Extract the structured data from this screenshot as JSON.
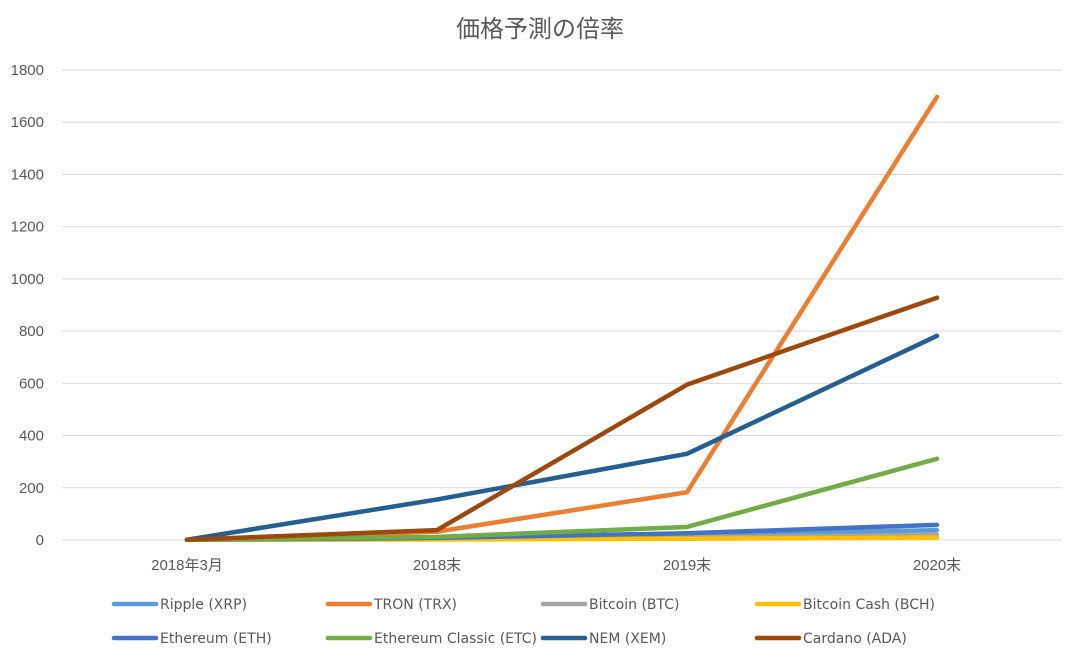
{
  "chart_data": {
    "type": "line",
    "title": "価格予測の倍率",
    "xlabel": "",
    "ylabel": "",
    "categories": [
      "2018年3月",
      "2018末",
      "2019末",
      "2020末"
    ],
    "ylim": [
      0,
      1800
    ],
    "yticks": [
      0,
      200,
      400,
      600,
      800,
      1000,
      1200,
      1400,
      1600,
      1800
    ],
    "grid": "horizontal",
    "legend_position": "bottom",
    "series": [
      {
        "name": "Ripple (XRP)",
        "color": "#5B9BD5",
        "values": [
          1,
          6,
          18,
          38
        ]
      },
      {
        "name": "TRON (TRX)",
        "color": "#ED7D31",
        "values": [
          1,
          32,
          183,
          1697
        ]
      },
      {
        "name": "Bitcoin (BTC)",
        "color": "#A5A5A5",
        "values": [
          1,
          3,
          10,
          20
        ]
      },
      {
        "name": "Bitcoin Cash (BCH)",
        "color": "#FFC000",
        "values": [
          1,
          2,
          5,
          9
        ]
      },
      {
        "name": "Ethereum (ETH)",
        "color": "#4472C4",
        "values": [
          1,
          8,
          26,
          58
        ]
      },
      {
        "name": "Ethereum Classic (ETC)",
        "color": "#70AD47",
        "values": [
          1,
          12,
          50,
          311
        ]
      },
      {
        "name": "NEM (XEM)",
        "color": "#255E91",
        "values": [
          1,
          155,
          330,
          782
        ]
      },
      {
        "name": "Cardano (ADA)",
        "color": "#9E480E",
        "values": [
          1,
          38,
          595,
          928
        ]
      }
    ]
  }
}
